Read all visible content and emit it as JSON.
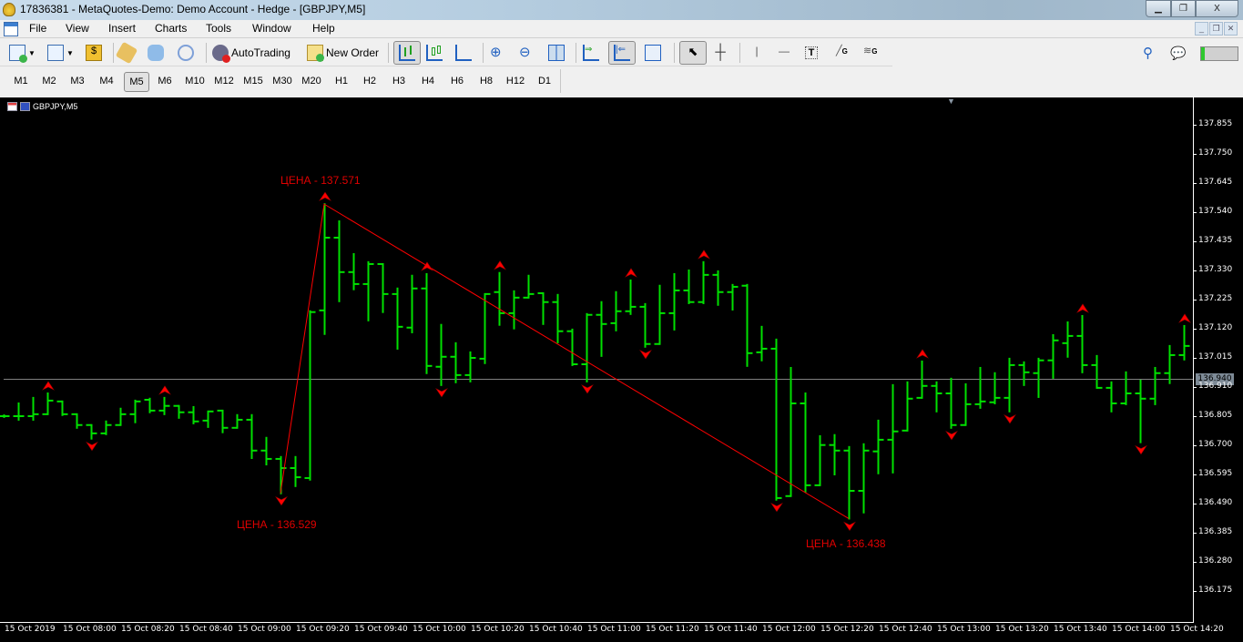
{
  "window": {
    "title": "17836381 - MetaQuotes-Demo: Demo Account - Hedge - [GBPJPY,M5]",
    "controls": [
      "minimize",
      "restore",
      "close"
    ]
  },
  "menu": [
    "File",
    "View",
    "Insert",
    "Charts",
    "Tools",
    "Window",
    "Help"
  ],
  "toolbar": {
    "autotrading_label": "AutoTrading",
    "new_order_label": "New Order"
  },
  "timeframes": {
    "items": [
      "M1",
      "M2",
      "M3",
      "M4",
      "M5",
      "M6",
      "M10",
      "M12",
      "M15",
      "M30",
      "M20",
      "H1",
      "H2",
      "H3",
      "H4",
      "H6",
      "H8",
      "H12",
      "D1"
    ],
    "selected": "M5"
  },
  "chart": {
    "symbol_label": "GBPJPY,M5",
    "current_price": "136.940"
  },
  "colors": {
    "bars": "#00e000",
    "zigzag": "#ff0000",
    "background": "#000000",
    "current_price_line": "#808080"
  },
  "chart_data": {
    "type": "ohlc-bar",
    "symbol": "GBPJPY",
    "timeframe": "M5",
    "ylim": [
      136.066,
      137.952
    ],
    "y_ticks": [
      "137.855",
      "137.750",
      "137.645",
      "137.540",
      "137.435",
      "137.330",
      "137.225",
      "137.120",
      "137.015",
      "136.910",
      "136.805",
      "136.700",
      "136.595",
      "136.490",
      "136.385",
      "136.280",
      "136.175"
    ],
    "x_ticks": [
      "15 Oct 2019",
      "15 Oct 08:00",
      "15 Oct 08:20",
      "15 Oct 08:40",
      "15 Oct 09:00",
      "15 Oct 09:20",
      "15 Oct 09:40",
      "15 Oct 10:00",
      "15 Oct 10:20",
      "15 Oct 10:40",
      "15 Oct 11:00",
      "15 Oct 11:20",
      "15 Oct 11:40",
      "15 Oct 12:00",
      "15 Oct 12:20",
      "15 Oct 12:40",
      "15 Oct 13:00",
      "15 Oct 13:20",
      "15 Oct 13:40",
      "15 Oct 14:00",
      "15 Oct 14:20"
    ],
    "first_bar_time": "15 Oct 07:40",
    "bar_minutes": 5,
    "ohlc": [
      [
        136.807,
        136.81,
        136.804,
        136.807
      ],
      [
        136.807,
        136.853,
        136.794,
        136.807
      ],
      [
        136.807,
        136.873,
        136.794,
        136.814
      ],
      [
        136.814,
        136.889,
        136.814,
        136.863
      ],
      [
        136.86,
        136.86,
        136.811,
        136.814
      ],
      [
        136.814,
        136.814,
        136.765,
        136.775
      ],
      [
        136.775,
        136.775,
        136.726,
        136.745
      ],
      [
        136.745,
        136.788,
        136.742,
        136.775
      ],
      [
        136.775,
        136.834,
        136.775,
        136.814
      ],
      [
        136.814,
        136.863,
        136.785,
        136.86
      ],
      [
        136.866,
        136.87,
        136.821,
        136.827
      ],
      [
        136.827,
        136.873,
        136.814,
        136.844
      ],
      [
        136.844,
        136.844,
        136.801,
        136.821
      ],
      [
        136.821,
        136.84,
        136.781,
        136.788
      ],
      [
        136.791,
        136.824,
        136.768,
        136.824
      ],
      [
        136.827,
        136.827,
        136.749,
        136.765
      ],
      [
        136.765,
        136.811,
        136.765,
        136.794
      ],
      [
        136.794,
        136.811,
        136.656,
        136.683
      ],
      [
        136.683,
        136.729,
        136.633,
        136.653
      ],
      [
        136.653,
        136.66,
        136.529,
        136.62
      ],
      [
        136.62,
        136.66,
        136.555,
        136.587
      ],
      [
        136.584,
        137.185,
        136.578,
        137.182
      ],
      [
        137.188,
        137.571,
        137.103,
        137.45
      ],
      [
        137.45,
        137.509,
        137.221,
        137.326
      ],
      [
        137.326,
        137.391,
        137.264,
        137.283
      ],
      [
        137.283,
        137.362,
        137.152,
        137.355
      ],
      [
        137.355,
        137.355,
        137.182,
        137.247
      ],
      [
        137.247,
        137.267,
        137.05,
        137.129
      ],
      [
        137.126,
        137.313,
        137.109,
        137.267
      ],
      [
        137.267,
        137.319,
        136.962,
        136.988
      ],
      [
        136.985,
        137.136,
        136.919,
        137.021
      ],
      [
        137.021,
        137.07,
        136.929,
        136.955
      ],
      [
        136.955,
        137.037,
        136.932,
        137.017
      ],
      [
        137.014,
        137.247,
        136.998,
        137.247
      ],
      [
        137.254,
        137.323,
        137.136,
        137.178
      ],
      [
        137.178,
        137.257,
        137.123,
        137.234
      ],
      [
        137.234,
        137.313,
        137.234,
        137.247
      ],
      [
        137.25,
        137.25,
        137.139,
        137.218
      ],
      [
        137.218,
        137.244,
        137.073,
        137.113
      ],
      [
        137.113,
        137.119,
        136.991,
        136.994
      ],
      [
        136.994,
        137.175,
        136.932,
        137.172
      ],
      [
        137.172,
        137.218,
        137.024,
        137.139
      ],
      [
        137.142,
        137.254,
        137.116,
        137.185
      ],
      [
        137.185,
        137.296,
        137.175,
        137.201
      ],
      [
        137.201,
        137.211,
        137.057,
        137.067
      ],
      [
        137.067,
        137.277,
        137.067,
        137.178
      ],
      [
        137.178,
        137.319,
        137.119,
        137.26
      ],
      [
        137.26,
        137.332,
        137.214,
        137.218
      ],
      [
        137.218,
        137.362,
        137.214,
        137.316
      ],
      [
        137.316,
        137.329,
        137.208,
        137.254
      ],
      [
        137.254,
        137.28,
        137.191,
        137.273
      ],
      [
        137.277,
        137.28,
        136.988,
        137.034
      ],
      [
        137.037,
        137.129,
        137.008,
        137.05
      ],
      [
        137.05,
        137.083,
        136.506,
        136.512
      ],
      [
        136.519,
        136.981,
        136.519,
        136.853
      ],
      [
        136.853,
        136.889,
        136.535,
        136.558
      ],
      [
        136.558,
        136.735,
        136.558,
        136.703
      ],
      [
        136.703,
        136.739,
        136.597,
        136.683
      ],
      [
        136.683,
        136.696,
        136.438,
        136.538
      ],
      [
        136.538,
        136.706,
        136.46,
        136.683
      ],
      [
        136.68,
        136.791,
        136.601,
        136.722
      ],
      [
        136.722,
        136.919,
        136.604,
        136.752
      ],
      [
        136.755,
        136.929,
        136.755,
        136.87
      ],
      [
        136.873,
        137.004,
        136.873,
        136.916
      ],
      [
        136.916,
        136.929,
        136.824,
        136.889
      ],
      [
        136.889,
        136.942,
        136.765,
        136.775
      ],
      [
        136.775,
        136.922,
        136.775,
        136.85
      ],
      [
        136.85,
        136.981,
        136.837,
        136.86
      ],
      [
        136.857,
        136.962,
        136.853,
        136.873
      ],
      [
        136.873,
        137.014,
        136.824,
        136.991
      ],
      [
        136.991,
        137.001,
        136.919,
        136.965
      ],
      [
        136.962,
        137.014,
        136.876,
        137.008
      ],
      [
        137.008,
        137.099,
        136.945,
        137.08
      ],
      [
        137.07,
        137.145,
        137.021,
        137.096
      ],
      [
        137.096,
        137.168,
        136.965,
        136.991
      ],
      [
        136.991,
        137.024,
        136.909,
        136.909
      ],
      [
        136.909,
        136.929,
        136.824,
        136.853
      ],
      [
        136.853,
        136.965,
        136.85,
        136.889
      ],
      [
        136.889,
        136.935,
        136.713,
        136.87
      ],
      [
        136.87,
        136.981,
        136.85,
        136.962
      ],
      [
        136.962,
        137.06,
        136.926,
        137.027
      ],
      [
        137.027,
        137.132,
        137.011,
        137.06
      ]
    ],
    "up_markers": [
      3,
      11,
      22,
      29,
      34,
      43,
      48,
      63,
      74,
      81
    ],
    "down_markers": [
      6,
      19,
      30,
      40,
      44,
      53,
      58,
      65,
      69,
      78
    ],
    "zigzag": [
      {
        "bar": 19,
        "price": 136.529
      },
      {
        "bar": 22,
        "price": 137.571
      },
      {
        "bar": 58,
        "price": 136.438
      }
    ],
    "annotations": [
      "ЦЕНА - 137.571",
      "ЦЕНА - 136.529",
      "ЦЕНА - 136.438"
    ],
    "current_price_line": 136.94
  }
}
